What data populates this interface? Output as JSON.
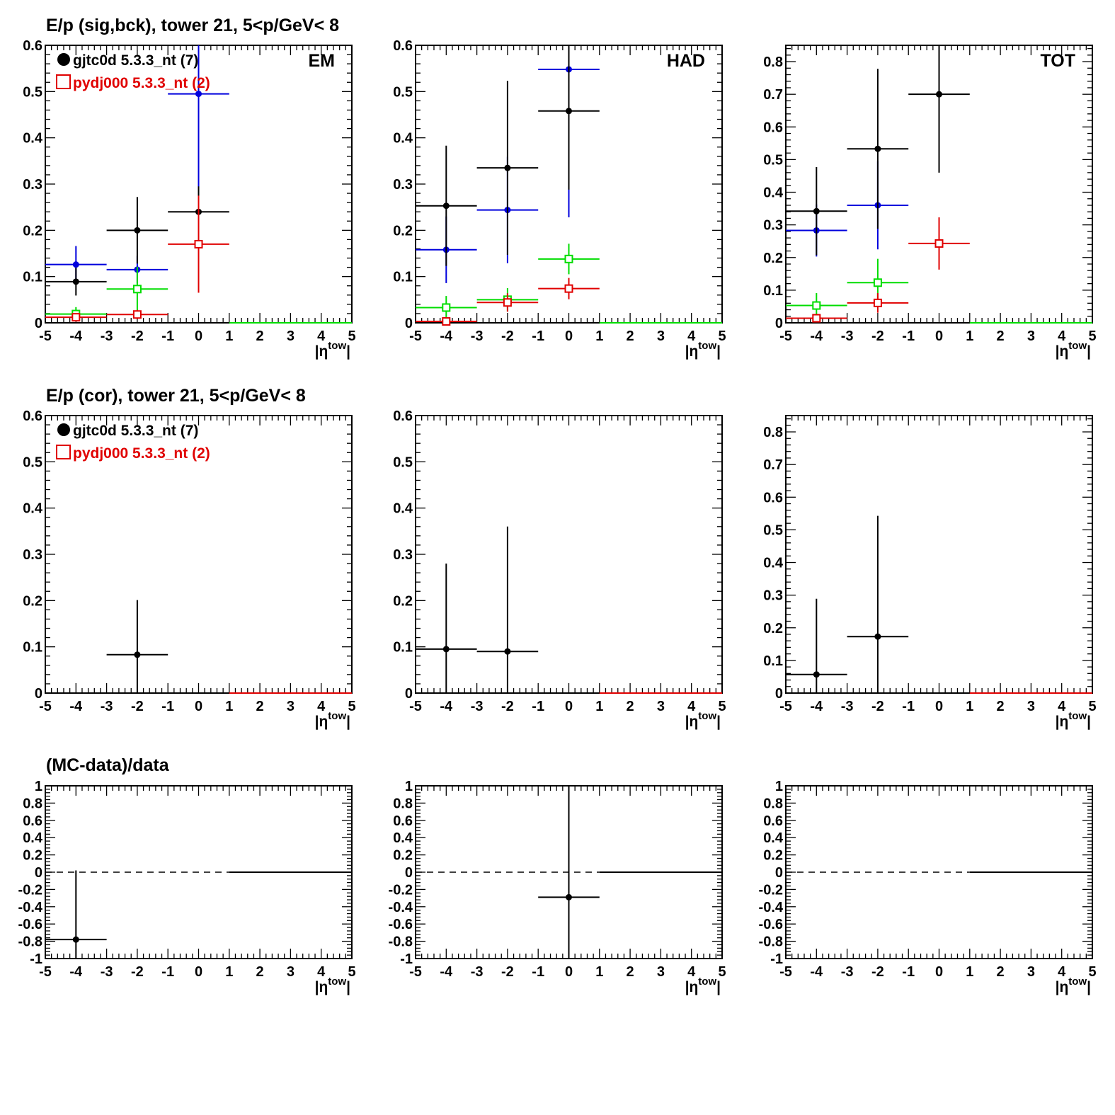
{
  "page": {
    "row_titles": [
      "E/p (sig,bck), tower 21,  5<p/GeV< 8",
      "E/p (cor), tower 21,  5<p/GeV< 8",
      "(MC-data)/data"
    ]
  },
  "colors": {
    "black": "#000000",
    "blue": "#0000dd",
    "red": "#e00000",
    "green": "#00dd00"
  },
  "legend": [
    {
      "marker": "filled-circle",
      "color": "#000000",
      "text": "gjtc0d 5.3.3_nt (7)"
    },
    {
      "marker": "open-square",
      "color": "#e00000",
      "text": "pydj000 5.3.3_nt (2)"
    }
  ],
  "xlabel": {
    "main": "|η",
    "sup": "tow",
    "tail": "|"
  },
  "chart_data": [
    {
      "type": "scatter",
      "row": 0,
      "col": 0,
      "label": "EM",
      "legend": true,
      "xlim": [
        -5,
        5
      ],
      "ylim": [
        0,
        0.6
      ],
      "xticks": [
        -5,
        -4,
        -3,
        -2,
        -1,
        0,
        1,
        2,
        3,
        4,
        5
      ],
      "yticks": [
        0,
        0.1,
        0.2,
        0.3,
        0.4,
        0.5,
        0.6
      ],
      "series": [
        {
          "color": "blue",
          "marker": "dot",
          "points": [
            [
              -4,
              0.126,
              0.04
            ],
            [
              -2,
              0.115,
              0.03
            ],
            [
              0,
              0.495,
              0.23
            ]
          ]
        },
        {
          "color": "black",
          "marker": "dot",
          "points": [
            [
              -4,
              0.089,
              0.03
            ],
            [
              -2,
              0.2,
              0.072
            ],
            [
              0,
              0.24,
              0.055
            ]
          ]
        },
        {
          "color": "green",
          "marker": "square",
          "points": [
            [
              -4,
              0.019,
              0.015
            ],
            [
              -2,
              0.073,
              0.048
            ]
          ],
          "flat_from": 1
        },
        {
          "color": "red",
          "marker": "square",
          "points": [
            [
              -4,
              0.012,
              0.008
            ],
            [
              -2,
              0.018,
              0.01
            ],
            [
              0,
              0.17,
              0.105
            ]
          ]
        }
      ]
    },
    {
      "type": "scatter",
      "row": 0,
      "col": 1,
      "label": "HAD",
      "legend": false,
      "xlim": [
        -5,
        5
      ],
      "ylim": [
        0,
        0.6
      ],
      "xticks": [
        -5,
        -4,
        -3,
        -2,
        -1,
        0,
        1,
        2,
        3,
        4,
        5
      ],
      "yticks": [
        0,
        0.1,
        0.2,
        0.3,
        0.4,
        0.5,
        0.6
      ],
      "series": [
        {
          "color": "blue",
          "marker": "dot",
          "points": [
            [
              -4,
              0.158,
              0.072
            ],
            [
              -2,
              0.244,
              0.115
            ],
            [
              0,
              0.548,
              0.32
            ]
          ]
        },
        {
          "color": "black",
          "marker": "dot",
          "points": [
            [
              -4,
              0.253,
              0.13
            ],
            [
              -2,
              0.335,
              0.188
            ],
            [
              0,
              0.458,
              0.17
            ]
          ]
        },
        {
          "color": "green",
          "marker": "square",
          "points": [
            [
              -4,
              0.033,
              0.025
            ],
            [
              -2,
              0.05,
              0.025
            ],
            [
              0,
              0.138,
              0.033
            ]
          ],
          "flat_from": 1
        },
        {
          "color": "red",
          "marker": "square",
          "points": [
            [
              -4,
              0.003,
              0.003
            ],
            [
              -2,
              0.044,
              0.02
            ],
            [
              0,
              0.074,
              0.023
            ]
          ]
        }
      ]
    },
    {
      "type": "scatter",
      "row": 0,
      "col": 2,
      "label": "TOT",
      "legend": false,
      "xlim": [
        -5,
        5
      ],
      "ylim": [
        0,
        0.85
      ],
      "xticks": [
        -5,
        -4,
        -3,
        -2,
        -1,
        0,
        1,
        2,
        3,
        4,
        5
      ],
      "yticks": [
        0,
        0.1,
        0.2,
        0.3,
        0.4,
        0.5,
        0.6,
        0.7,
        0.8
      ],
      "series": [
        {
          "color": "blue",
          "marker": "dot",
          "points": [
            [
              -4,
              0.283,
              0.08
            ],
            [
              -2,
              0.36,
              0.135
            ]
          ]
        },
        {
          "color": "black",
          "marker": "dot",
          "points": [
            [
              -4,
              0.342,
              0.135
            ],
            [
              -2,
              0.533,
              0.245
            ],
            [
              0,
              0.7,
              0.24
            ]
          ]
        },
        {
          "color": "green",
          "marker": "square",
          "points": [
            [
              -4,
              0.053,
              0.038
            ],
            [
              -2,
              0.123,
              0.073
            ]
          ],
          "flat_from": 1
        },
        {
          "color": "red",
          "marker": "square",
          "points": [
            [
              -4,
              0.014,
              0.01
            ],
            [
              -2,
              0.061,
              0.03
            ],
            [
              0,
              0.243,
              0.08
            ]
          ]
        }
      ]
    },
    {
      "type": "scatter",
      "row": 1,
      "col": 0,
      "label": "",
      "legend": true,
      "xlim": [
        -5,
        5
      ],
      "ylim": [
        0,
        0.6
      ],
      "xticks": [
        -5,
        -4,
        -3,
        -2,
        -1,
        0,
        1,
        2,
        3,
        4,
        5
      ],
      "yticks": [
        0,
        0.1,
        0.2,
        0.3,
        0.4,
        0.5,
        0.6
      ],
      "series": [
        {
          "color": "black",
          "marker": "dot",
          "points": [
            [
              -2,
              0.083,
              0.118
            ]
          ]
        },
        {
          "color": "red",
          "marker": "none",
          "points": [],
          "flat_from": 1
        }
      ]
    },
    {
      "type": "scatter",
      "row": 1,
      "col": 1,
      "label": "",
      "legend": false,
      "xlim": [
        -5,
        5
      ],
      "ylim": [
        0,
        0.6
      ],
      "xticks": [
        -5,
        -4,
        -3,
        -2,
        -1,
        0,
        1,
        2,
        3,
        4,
        5
      ],
      "yticks": [
        0,
        0.1,
        0.2,
        0.3,
        0.4,
        0.5,
        0.6
      ],
      "series": [
        {
          "color": "black",
          "marker": "dot",
          "points": [
            [
              -4,
              0.095,
              0.185
            ],
            [
              -2,
              0.09,
              0.27
            ]
          ]
        },
        {
          "color": "red",
          "marker": "none",
          "points": [],
          "flat_from": 1
        }
      ]
    },
    {
      "type": "scatter",
      "row": 1,
      "col": 2,
      "label": "",
      "legend": false,
      "xlim": [
        -5,
        5
      ],
      "ylim": [
        0,
        0.85
      ],
      "xticks": [
        -5,
        -4,
        -3,
        -2,
        -1,
        0,
        1,
        2,
        3,
        4,
        5
      ],
      "yticks": [
        0,
        0.1,
        0.2,
        0.3,
        0.4,
        0.5,
        0.6,
        0.7,
        0.8
      ],
      "series": [
        {
          "color": "black",
          "marker": "dot",
          "points": [
            [
              -4,
              0.057,
              0.232
            ],
            [
              -2,
              0.173,
              0.37
            ]
          ]
        },
        {
          "color": "red",
          "marker": "none",
          "points": [],
          "flat_from": 1
        }
      ]
    },
    {
      "type": "scatter",
      "row": 2,
      "col": 0,
      "label": "",
      "legend": false,
      "xlim": [
        -5,
        5
      ],
      "ylim": [
        -1,
        1
      ],
      "xticks": [
        -5,
        -4,
        -3,
        -2,
        -1,
        0,
        1,
        2,
        3,
        4,
        5
      ],
      "yticks": [
        -1,
        -0.8,
        -0.6,
        -0.4,
        -0.2,
        0,
        0.2,
        0.4,
        0.6,
        0.8,
        1
      ],
      "zero_line": true,
      "series": [
        {
          "color": "black",
          "marker": "dot",
          "points": [
            [
              -4,
              -0.78,
              0.8
            ]
          ],
          "flat_from": 1
        }
      ]
    },
    {
      "type": "scatter",
      "row": 2,
      "col": 1,
      "label": "",
      "legend": false,
      "xlim": [
        -5,
        5
      ],
      "ylim": [
        -1,
        1
      ],
      "xticks": [
        -5,
        -4,
        -3,
        -2,
        -1,
        0,
        1,
        2,
        3,
        4,
        5
      ],
      "yticks": [
        -1,
        -0.8,
        -0.6,
        -0.4,
        -0.2,
        0,
        0.2,
        0.4,
        0.6,
        0.8,
        1
      ],
      "zero_line": true,
      "series": [
        {
          "color": "black",
          "marker": "dot",
          "points": [
            [
              0,
              -0.29,
              1.3
            ]
          ],
          "flat_from": 1
        }
      ]
    },
    {
      "type": "scatter",
      "row": 2,
      "col": 2,
      "label": "",
      "legend": false,
      "xlim": [
        -5,
        5
      ],
      "ylim": [
        -1,
        1
      ],
      "xticks": [
        -5,
        -4,
        -3,
        -2,
        -1,
        0,
        1,
        2,
        3,
        4,
        5
      ],
      "yticks": [
        -1,
        -0.8,
        -0.6,
        -0.4,
        -0.2,
        0,
        0.2,
        0.4,
        0.6,
        0.8,
        1
      ],
      "zero_line": true,
      "series": [
        {
          "color": "black",
          "marker": "none",
          "points": [],
          "flat_from": 1
        }
      ]
    }
  ]
}
